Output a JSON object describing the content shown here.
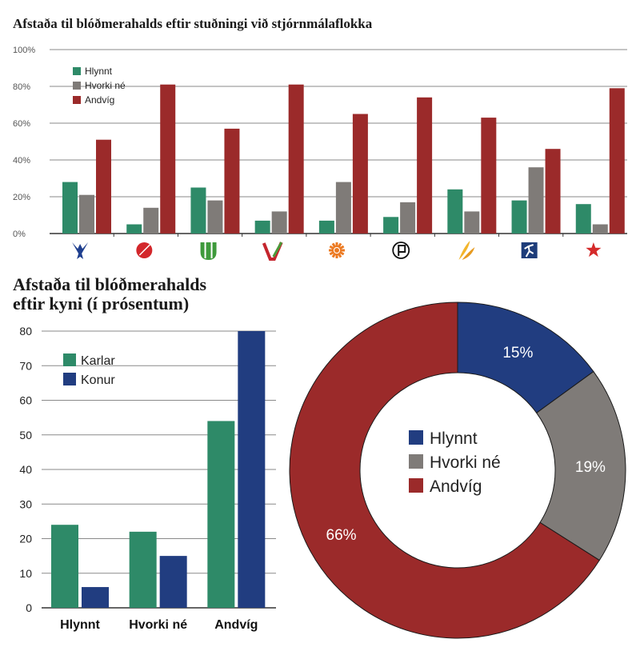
{
  "colors": {
    "green": "#2e8a68",
    "gray": "#7f7b78",
    "red": "#9b2a2a",
    "blue": "#213d80",
    "grid": "#8a8a8a"
  },
  "chart_data": [
    {
      "type": "bar",
      "title": "Afstaða til blóðmerahalds eftir stuðningi við stjórnmálaflokka",
      "categories": [
        "party-falcon",
        "party-red-circle",
        "party-green-leaf",
        "party-v-check",
        "party-orange-sun",
        "party-pirate-flag",
        "party-yellow-leaves",
        "party-blue-runner",
        "party-red-star"
      ],
      "category_icons": [
        "falcon-icon",
        "red-circle-icon",
        "green-leaf-icon",
        "v-check-icon",
        "orange-sun-icon",
        "pirate-flag-icon",
        "yellow-leaves-icon",
        "blue-runner-icon",
        "red-star-icon"
      ],
      "y_ticks": [
        "100%",
        "80%",
        "60%",
        "40%",
        "20%",
        "0%"
      ],
      "ylim": [
        0,
        100
      ],
      "grid": true,
      "legend": "top-left",
      "series": [
        {
          "name": "Hlynnt",
          "color": "#2e8a68",
          "values": [
            28,
            5,
            25,
            7,
            7,
            9,
            24,
            18,
            16
          ]
        },
        {
          "name": "Hvorki né",
          "color": "#7f7b78",
          "values": [
            21,
            14,
            18,
            12,
            28,
            17,
            12,
            36,
            5
          ]
        },
        {
          "name": "Andvíg",
          "color": "#9b2a2a",
          "values": [
            51,
            81,
            57,
            81,
            65,
            74,
            63,
            46,
            79
          ]
        }
      ]
    },
    {
      "type": "bar",
      "title": "Afstaða til blóðmerahalds eftir kyni (í prósentum)",
      "title_lines": [
        "Afstaða til blóðmerahalds",
        "eftir kyni (í prósentum)"
      ],
      "categories": [
        "Hlynnt",
        "Hvorki né",
        "Andvíg"
      ],
      "y_ticks": [
        "80",
        "70",
        "60",
        "50",
        "40",
        "30",
        "20",
        "10",
        "0"
      ],
      "ylim": [
        0,
        80
      ],
      "grid": true,
      "legend": "top-left",
      "series": [
        {
          "name": "Karlar",
          "color": "#2e8a68",
          "values": [
            24,
            22,
            54
          ]
        },
        {
          "name": "Konur",
          "color": "#213d80",
          "values": [
            6,
            15,
            80
          ]
        }
      ]
    },
    {
      "type": "pie",
      "subtype": "donut",
      "legend": "center",
      "slices": [
        {
          "name": "Hlynnt",
          "value": 15,
          "label": "15%",
          "color": "#213d80"
        },
        {
          "name": "Hvorki né",
          "value": 19,
          "label": "19%",
          "color": "#7f7b78"
        },
        {
          "name": "Andvíg",
          "value": 66,
          "label": "66%",
          "color": "#9b2a2a"
        }
      ]
    }
  ]
}
